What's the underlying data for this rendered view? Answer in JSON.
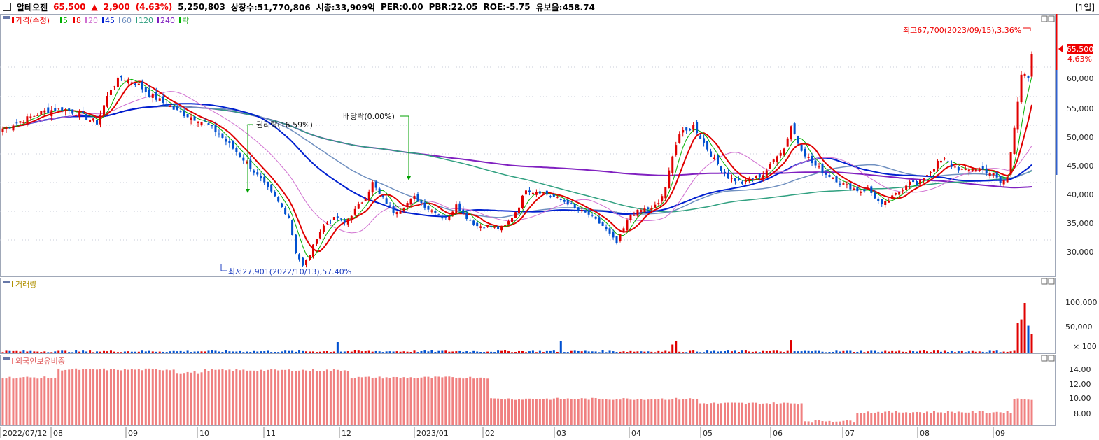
{
  "header": {
    "name": "알테오젠",
    "price": "65,500",
    "change_arrow": "▲",
    "change": "2,900",
    "change_pct": "(4.63%)",
    "volume": "5,250,803",
    "listed": "상장수:51,770,806",
    "mktcap": "시총:33,909억",
    "per": "PER:0.00",
    "pbr": "PBR:22.05",
    "roe": "ROE:-5.75",
    "float": "유보율:458.74",
    "period": "[1일]"
  },
  "colors": {
    "up": "#e00000",
    "down": "#0050d0",
    "ma5": "#00b000",
    "ma8": "#e00000",
    "ma20": "#d070d0",
    "ma45": "#0020d0",
    "ma60": "#7090c0",
    "ma120": "#30a080",
    "ma240": "#8020c0",
    "foreign": "#f08080"
  },
  "legend": {
    "price": "가격(수정)",
    "ma": [
      "5",
      "8",
      "20",
      "45",
      "60",
      "120",
      "240"
    ],
    "rak": "락"
  },
  "volume_panel": {
    "title": "거래량",
    "ticks": [
      "100,000",
      "50,000",
      "× 100"
    ]
  },
  "foreign_panel": {
    "title": "외국인보유비중",
    "ticks": [
      "14.00",
      "12.00",
      "10.00",
      "8.00"
    ]
  },
  "chart_data": {
    "type": "candlestick",
    "price_axis": {
      "ticks": [
        "60,000",
        "55,000",
        "50,000",
        "45,000",
        "40,000",
        "35,000",
        "30,000"
      ]
    },
    "x_labels": [
      "2022/07/12",
      "08",
      "09",
      "10",
      "11",
      "12",
      "2023/01",
      "02",
      "03",
      "04",
      "05",
      "06",
      "07",
      "08",
      "09"
    ],
    "last_price": "65,500",
    "last_pct": "4.63%",
    "annotations": {
      "high": "최고67,700(2023/09/15),3.36%",
      "low": "최저27,901(2022/10/13),57.40%",
      "rights": "권리락(16.59%)",
      "dividend": "배당락(0.00%)"
    },
    "price_path": [
      [
        0,
        52500
      ],
      [
        6,
        54000
      ],
      [
        12,
        55500
      ],
      [
        17,
        56000
      ],
      [
        22,
        55000
      ],
      [
        27,
        53500
      ],
      [
        31,
        59500
      ],
      [
        34,
        61500
      ],
      [
        38,
        60500
      ],
      [
        42,
        58500
      ],
      [
        46,
        57000
      ],
      [
        50,
        55500
      ],
      [
        54,
        54500
      ],
      [
        58,
        53500
      ],
      [
        62,
        51500
      ],
      [
        66,
        49000
      ],
      [
        70,
        46500
      ],
      [
        74,
        43500
      ],
      [
        78,
        40500
      ],
      [
        82,
        37000
      ],
      [
        84,
        31000
      ],
      [
        86,
        28500
      ],
      [
        88,
        30500
      ],
      [
        90,
        33500
      ],
      [
        92,
        35500
      ],
      [
        94,
        36500
      ],
      [
        96,
        37000
      ],
      [
        98,
        36000
      ],
      [
        100,
        37500
      ],
      [
        102,
        39000
      ],
      [
        104,
        40500
      ],
      [
        106,
        43000
      ],
      [
        108,
        41000
      ],
      [
        110,
        39500
      ],
      [
        112,
        38000
      ],
      [
        114,
        38500
      ],
      [
        116,
        39500
      ],
      [
        118,
        40500
      ],
      [
        120,
        39500
      ],
      [
        122,
        38500
      ],
      [
        124,
        38000
      ],
      [
        126,
        37000
      ],
      [
        128,
        37000
      ],
      [
        130,
        39500
      ],
      [
        132,
        37500
      ],
      [
        134,
        36500
      ],
      [
        136,
        35500
      ],
      [
        138,
        35500
      ],
      [
        140,
        35500
      ],
      [
        142,
        35000
      ],
      [
        144,
        35500
      ],
      [
        146,
        37000
      ],
      [
        148,
        39000
      ],
      [
        150,
        42000
      ],
      [
        152,
        41500
      ],
      [
        154,
        41500
      ],
      [
        156,
        41000
      ],
      [
        158,
        40500
      ],
      [
        160,
        40000
      ],
      [
        162,
        39500
      ],
      [
        164,
        38500
      ],
      [
        166,
        38000
      ],
      [
        168,
        37500
      ],
      [
        170,
        36500
      ],
      [
        172,
        35500
      ],
      [
        174,
        34000
      ],
      [
        176,
        32500
      ],
      [
        178,
        35000
      ],
      [
        180,
        37500
      ],
      [
        182,
        38000
      ],
      [
        184,
        38500
      ],
      [
        186,
        38500
      ],
      [
        188,
        39500
      ],
      [
        190,
        42000
      ],
      [
        192,
        48000
      ],
      [
        194,
        51500
      ],
      [
        196,
        52000
      ],
      [
        198,
        53000
      ],
      [
        200,
        51000
      ],
      [
        202,
        49000
      ],
      [
        204,
        47000
      ],
      [
        206,
        45500
      ],
      [
        208,
        44000
      ],
      [
        210,
        43500
      ],
      [
        212,
        43000
      ],
      [
        214,
        43500
      ],
      [
        216,
        44000
      ],
      [
        218,
        44500
      ],
      [
        220,
        46000
      ],
      [
        222,
        48000
      ],
      [
        224,
        49000
      ],
      [
        226,
        53000
      ],
      [
        228,
        50000
      ],
      [
        230,
        48000
      ],
      [
        232,
        46500
      ],
      [
        234,
        45500
      ],
      [
        236,
        44500
      ],
      [
        238,
        44000
      ],
      [
        240,
        43000
      ],
      [
        242,
        42500
      ],
      [
        244,
        42000
      ],
      [
        246,
        41500
      ],
      [
        248,
        42000
      ],
      [
        250,
        40500
      ],
      [
        252,
        39000
      ],
      [
        254,
        40000
      ],
      [
        256,
        41000
      ],
      [
        258,
        42000
      ],
      [
        260,
        43500
      ],
      [
        262,
        42500
      ],
      [
        264,
        44000
      ],
      [
        266,
        45000
      ],
      [
        268,
        46500
      ],
      [
        270,
        47000
      ],
      [
        272,
        46000
      ],
      [
        274,
        45500
      ],
      [
        276,
        45000
      ],
      [
        278,
        45500
      ],
      [
        280,
        45500
      ],
      [
        282,
        45000
      ],
      [
        284,
        44500
      ],
      [
        286,
        43000
      ],
      [
        288,
        44000
      ],
      [
        290,
        53000
      ],
      [
        292,
        62000
      ],
      [
        294,
        61000
      ],
      [
        295,
        65500
      ]
    ]
  }
}
